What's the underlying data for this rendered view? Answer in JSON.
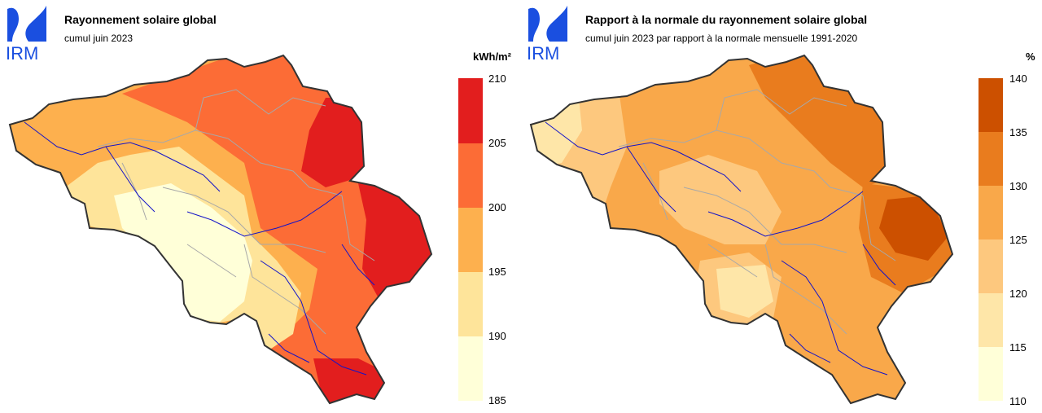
{
  "colors": {
    "logo_blue": "#1a4fe0",
    "outline": "#333333",
    "provinces": "#a8a8a8",
    "rivers": "#1414c8",
    "abs_scale": [
      "#ffffd8",
      "#fee49a",
      "#fdb04e",
      "#fc6c36",
      "#e21e1e"
    ],
    "rel_scale": [
      "#ffffd8",
      "#fee6a8",
      "#fdc87e",
      "#f9a84a",
      "#e97c1e",
      "#cc5000"
    ]
  },
  "panels": [
    {
      "logo_text": "IRM",
      "title": "Rayonnement solaire global",
      "subtitle": "cumul juin 2023",
      "unit": "kWh/m²",
      "ticks": [
        "210",
        "205",
        "200",
        "195",
        "190",
        "185"
      ]
    },
    {
      "logo_text": "IRM",
      "title": "Rapport à la normale du rayonnement solaire global",
      "subtitle": "cumul juin 2023 par rapport à la normale mensuelle 1991-2020",
      "unit": "%",
      "ticks": [
        "140",
        "135",
        "130",
        "125",
        "120",
        "115",
        "110"
      ]
    }
  ]
}
